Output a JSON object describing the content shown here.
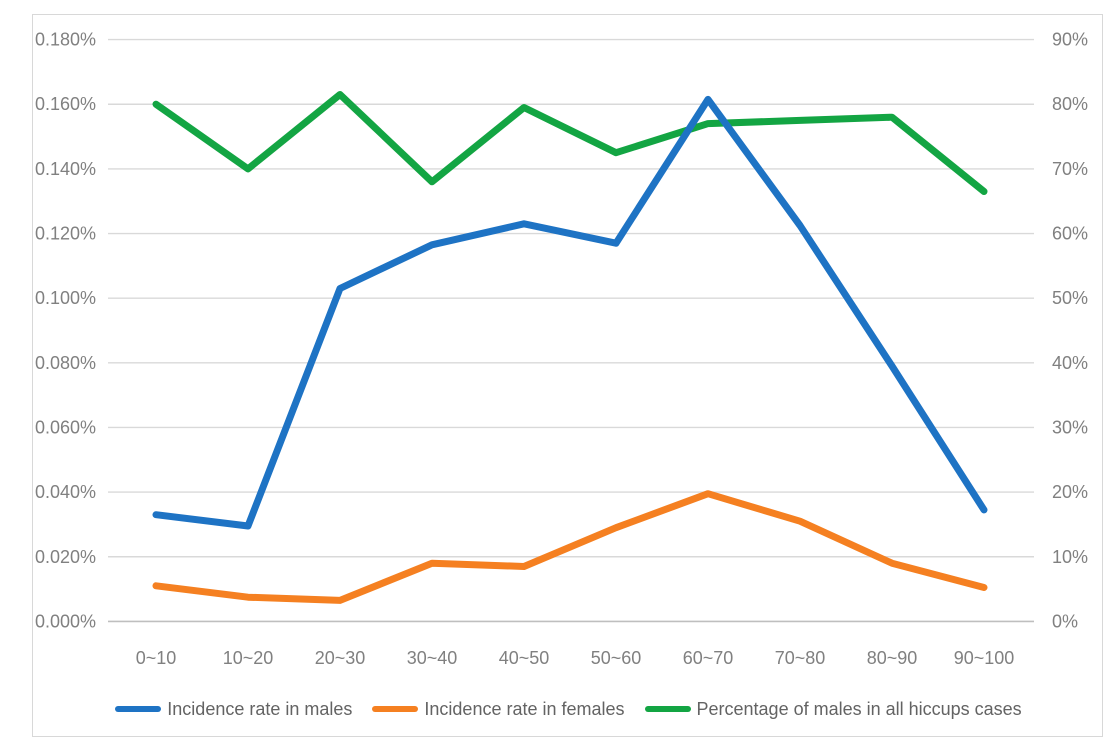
{
  "chart_data": {
    "type": "line",
    "title": "",
    "categories": [
      "0~10",
      "10~20",
      "20~30",
      "30~40",
      "40~50",
      "50~60",
      "60~70",
      "70~80",
      "80~90",
      "90~100"
    ],
    "series": [
      {
        "key": "incidence-males",
        "name": "Incidence rate in males",
        "color": "#1E73C4",
        "axis": "left",
        "unit": "%",
        "values": [
          0.033,
          0.0295,
          0.103,
          0.1165,
          0.123,
          0.117,
          0.1615,
          0.1225,
          0.079,
          0.0345
        ]
      },
      {
        "key": "incidence-females",
        "name": "Incidence rate in females",
        "color": "#F58021",
        "axis": "left",
        "unit": "%",
        "values": [
          0.011,
          0.0075,
          0.0065,
          0.018,
          0.017,
          0.029,
          0.0395,
          0.031,
          0.018,
          0.0105
        ]
      },
      {
        "key": "pct-males-all-hiccups-cases",
        "name": "Percentage of males in all hiccups cases",
        "color": "#13A543",
        "axis": "right",
        "unit": "%",
        "values": [
          80,
          70,
          81.5,
          68,
          79.5,
          72.5,
          77,
          77.5,
          78,
          66.5
        ]
      }
    ],
    "left_axis": {
      "min": 0,
      "max": 0.18,
      "step": 0.02,
      "tick_labels": [
        "0.180%",
        "0.160%",
        "0.140%",
        "0.120%",
        "0.100%",
        "0.080%",
        "0.060%",
        "0.040%",
        "0.020%",
        "0.000%"
      ]
    },
    "right_axis": {
      "min": 0,
      "max": 90,
      "step": 10,
      "tick_labels": [
        "90%",
        "80%",
        "70%",
        "60%",
        "50%",
        "40%",
        "30%",
        "20%",
        "10%",
        "0%"
      ]
    },
    "grid": true,
    "legend_position": "bottom",
    "colors": {
      "gridline": "#D9D9D9",
      "axis_line": "#BFBFBF",
      "axis_text": "#808080",
      "legend_text": "#636363",
      "frame_border": "#D8D8D8",
      "background": "#FFFFFF"
    }
  }
}
